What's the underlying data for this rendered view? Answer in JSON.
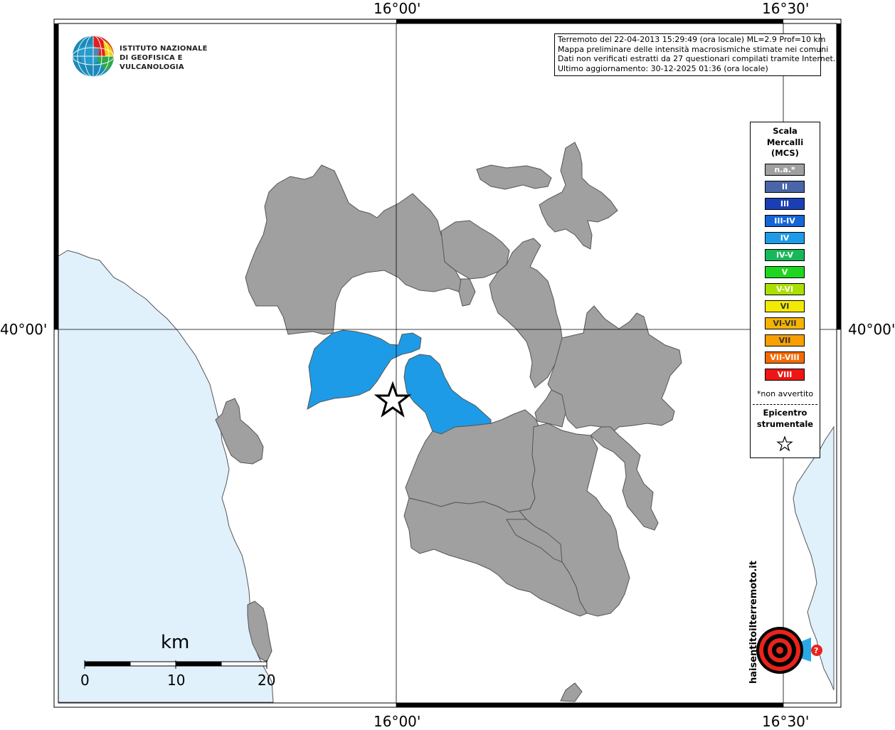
{
  "coordinates": {
    "top_left": "16°00'",
    "top_right": "16°30'",
    "bottom_left": "16°00'",
    "bottom_right": "16°30'",
    "left": "40°00'",
    "right": "40°00'"
  },
  "info": {
    "line1": "Terremoto del 22-04-2013 15:29:49 (ora locale) ML=2.9 Prof=10 km",
    "line2": "Mappa preliminare delle intensità macrosismiche stimate nei comuni",
    "line3": "Dati non verificati estratti da 27 questionari compilati tramite Internet.",
    "line4": "Ultimo aggiornamento: 30-12-2025 01:36 (ora locale)"
  },
  "ingv": {
    "line1": "ISTITUTO NAZIONALE",
    "line2": "DI GEOFISICA E VULCANOLOGIA"
  },
  "legend": {
    "title1": "Scala",
    "title2": "Mercalli",
    "title3": "(MCS)",
    "items": [
      {
        "label": "n.a.*",
        "color": "#a0a0a0"
      },
      {
        "label": "II",
        "color": "#4a66a8"
      },
      {
        "label": "III",
        "color": "#1a3fb5"
      },
      {
        "label": "III-IV",
        "color": "#1565d6"
      },
      {
        "label": "IV",
        "color": "#1e9be6"
      },
      {
        "label": "IV-V",
        "color": "#17b859"
      },
      {
        "label": "V",
        "color": "#1fd61f"
      },
      {
        "label": "V-VI",
        "color": "#a9e000"
      },
      {
        "label": "VI",
        "color": "#f2ea00"
      },
      {
        "label": "VI-VII",
        "color": "#f5b400"
      },
      {
        "label": "VII",
        "color": "#f7a000"
      },
      {
        "label": "VII-VIII",
        "color": "#f56a00"
      },
      {
        "label": "VIII",
        "color": "#ee1515"
      }
    ],
    "note": "*non avvertito",
    "epicenter1": "Epicentro",
    "epicenter2": "strumentale"
  },
  "scalebar": {
    "unit": "km",
    "ticks": [
      "0",
      "10",
      "20"
    ]
  },
  "colors": {
    "sea": "#e0f1fc",
    "municipality_na": "#a0a0a0",
    "intensity_iv": "#1e9be6",
    "border": "#555555"
  },
  "haisentito_logo": {
    "text": "haisentitoilterremoto.it",
    "url": "www"
  }
}
